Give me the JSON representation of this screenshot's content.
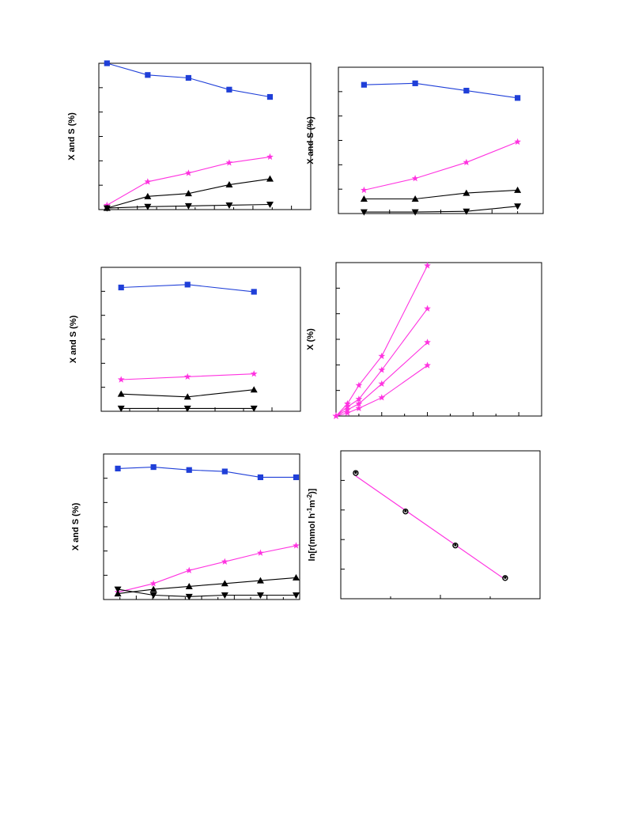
{
  "colors": {
    "blue": "#1f3fd8",
    "magenta": "#ff33e0",
    "black": "#000000"
  },
  "chart_data": [
    {
      "type": "line",
      "ylabel": "X and S (%)",
      "xlim": [
        0,
        5.2
      ],
      "ylim": [
        0,
        100
      ],
      "x": [
        0.2,
        1.2,
        2.2,
        3.2,
        4.2
      ],
      "series": [
        {
          "marker": "square",
          "color": "#1f3fd8",
          "values": [
            100,
            92,
            90,
            82,
            77
          ]
        },
        {
          "marker": "star",
          "color": "#ff33e0",
          "values": [
            3,
            19,
            25,
            32,
            36
          ]
        },
        {
          "marker": "triangle-up",
          "color": "#000000",
          "values": [
            1,
            9,
            11,
            17,
            21
          ]
        },
        {
          "marker": "triangle-down",
          "color": "#000000",
          "values": [
            1,
            2,
            2.5,
            3,
            3.5
          ]
        }
      ]
    },
    {
      "type": "line",
      "ylabel": "X and S (%)",
      "xlim": [
        0,
        4
      ],
      "ylim": [
        0,
        100
      ],
      "x": [
        0.5,
        1.5,
        2.5,
        3.5
      ],
      "series": [
        {
          "marker": "square",
          "color": "#1f3fd8",
          "values": [
            88,
            89,
            84,
            79
          ]
        },
        {
          "marker": "star",
          "color": "#ff33e0",
          "values": [
            16,
            24,
            35,
            49
          ]
        },
        {
          "marker": "triangle-up",
          "color": "#000000",
          "values": [
            10,
            10,
            14,
            16
          ]
        },
        {
          "marker": "triangle-down",
          "color": "#000000",
          "values": [
            1,
            1,
            1.5,
            5
          ]
        }
      ]
    },
    {
      "type": "line",
      "ylabel": "X and S (%)",
      "xlim": [
        0,
        3
      ],
      "ylim": [
        0,
        100
      ],
      "x": [
        0.3,
        1.3,
        2.3
      ],
      "series": [
        {
          "marker": "square",
          "color": "#1f3fd8",
          "values": [
            86,
            88,
            83
          ]
        },
        {
          "marker": "star",
          "color": "#ff33e0",
          "values": [
            22,
            24,
            26
          ]
        },
        {
          "marker": "triangle-up",
          "color": "#000000",
          "values": [
            12,
            10,
            15
          ]
        },
        {
          "marker": "triangle-down",
          "color": "#000000",
          "values": [
            2,
            2,
            2
          ]
        }
      ]
    },
    {
      "type": "line",
      "ylabel": "X (%)",
      "xlim": [
        0,
        9
      ],
      "ylim": [
        0,
        100
      ],
      "series": [
        {
          "marker": "star",
          "color": "#ff33e0",
          "x": [
            0,
            0.5,
            1,
            2,
            4
          ],
          "values": [
            0,
            8,
            20,
            39,
            98
          ]
        },
        {
          "marker": "star",
          "color": "#ff33e0",
          "x": [
            0,
            0.5,
            1,
            2,
            4
          ],
          "values": [
            0,
            6,
            11,
            30,
            70
          ]
        },
        {
          "marker": "star",
          "color": "#ff33e0",
          "x": [
            0,
            0.5,
            1,
            2,
            4
          ],
          "values": [
            0,
            4,
            8,
            21,
            48
          ]
        },
        {
          "marker": "star",
          "color": "#ff33e0",
          "x": [
            0,
            0.5,
            1,
            2,
            4
          ],
          "values": [
            0,
            2,
            5,
            12,
            33
          ]
        }
      ]
    },
    {
      "type": "line",
      "ylabel": "X and S (%)",
      "xlim": [
        0,
        5.5
      ],
      "ylim": [
        0,
        100
      ],
      "x": [
        0.4,
        1.4,
        2.4,
        3.4,
        4.4,
        5.4
      ],
      "series": [
        {
          "marker": "square",
          "color": "#1f3fd8",
          "values": [
            90,
            91,
            89,
            88,
            84,
            84
          ]
        },
        {
          "marker": "star",
          "color": "#ff33e0",
          "values": [
            5,
            11,
            20,
            26,
            32,
            37
          ]
        },
        {
          "marker": "triangle-up",
          "color": "#000000",
          "values": [
            4,
            7,
            9,
            11,
            13,
            15
          ]
        },
        {
          "marker": "triangle-down",
          "color": "#000000",
          "values": [
            7,
            3,
            2,
            3,
            3,
            3
          ]
        }
      ]
    },
    {
      "type": "scatter",
      "ylabel": "ln[r(mmol h-1m-2)]",
      "ylabel_parts": [
        "ln[r(mmol h",
        "-1",
        "m",
        "-2",
        ")]"
      ],
      "xlim": [
        0,
        4
      ],
      "ylim": [
        0,
        10
      ],
      "points": {
        "marker": "circle",
        "x": [
          0.3,
          1.3,
          2.3,
          3.3
        ],
        "y": [
          8.5,
          5.9,
          3.6,
          1.4
        ]
      },
      "fit": {
        "color": "#ff33e0",
        "x": [
          0.3,
          3.3
        ],
        "y": [
          8.3,
          1.3
        ]
      }
    }
  ]
}
